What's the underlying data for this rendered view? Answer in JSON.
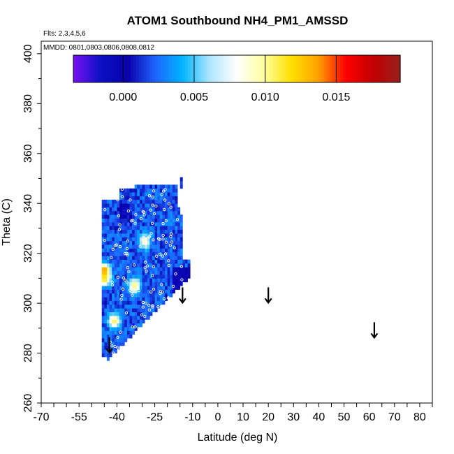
{
  "chart_data": {
    "type": "heatmap",
    "title": "ATOM1 Southbound NH4_PM1_AMSSD",
    "flights_note": "Flts: 2,3,4,5,6",
    "dates_note": "MMDD: 0801,0803,0806,0808,0812",
    "xlabel": "Latitude (deg N)",
    "ylabel": "Theta (C)",
    "xlim": [
      -70,
      85
    ],
    "ylim": [
      260,
      405
    ],
    "x_tick_labels": [
      "-70",
      "-55",
      "-40",
      "-25",
      "-10",
      "0",
      "10",
      "20",
      "30",
      "40",
      "50",
      "60",
      "70",
      "80"
    ],
    "y_tick_labels": [
      "260",
      "280",
      "300",
      "320",
      "340",
      "360",
      "380",
      "400"
    ],
    "colorbar": {
      "range": [
        -0.0035,
        0.0195
      ],
      "tick_labels": [
        "0.000",
        "0.005",
        "0.010",
        "0.015"
      ],
      "tick_values": [
        0.0,
        0.005,
        0.01,
        0.015
      ],
      "colors": [
        "#7a11f2",
        "#0a11c4",
        "#0a00aa",
        "#1e63ff",
        "#00b4ff",
        "#aee6ff",
        "#ffffff",
        "#ffff9e",
        "#ffe000",
        "#ffa000",
        "#ff0000",
        "#c20000",
        "#962020"
      ]
    },
    "field": {
      "lat_range": [
        -46,
        -11
      ],
      "theta_range": [
        277,
        350
      ],
      "description_values": "gridded NH4 values mostly 0.000-0.004, peaks near 0.010-0.016",
      "hotspots": [
        {
          "lat": -29,
          "theta": 325,
          "value": 0.0095
        },
        {
          "lat": -45,
          "theta": 313,
          "value": 0.015
        },
        {
          "lat": -45,
          "theta": 310,
          "value": 0.012
        },
        {
          "lat": -33,
          "theta": 307,
          "value": 0.011
        },
        {
          "lat": -41,
          "theta": 293,
          "value": 0.011
        },
        {
          "lat": -37,
          "theta": 337,
          "value": -0.002
        }
      ]
    },
    "arrows": [
      {
        "lat": -43,
        "theta": 283
      },
      {
        "lat": -14,
        "theta": 303
      },
      {
        "lat": 20,
        "theta": 303
      },
      {
        "lat": 62,
        "theta": 289
      }
    ]
  }
}
